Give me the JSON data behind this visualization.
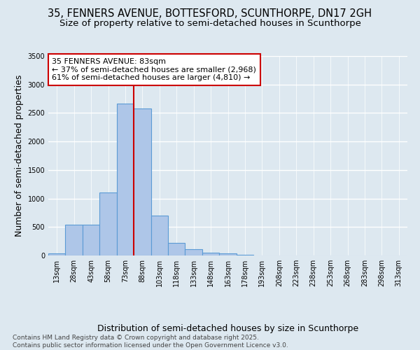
{
  "title_line1": "35, FENNERS AVENUE, BOTTESFORD, SCUNTHORPE, DN17 2GH",
  "title_line2": "Size of property relative to semi-detached houses in Scunthorpe",
  "xlabel": "Distribution of semi-detached houses by size in Scunthorpe",
  "ylabel": "Number of semi-detached properties",
  "bin_labels": [
    "13sqm",
    "28sqm",
    "43sqm",
    "58sqm",
    "73sqm",
    "88sqm",
    "103sqm",
    "118sqm",
    "133sqm",
    "148sqm",
    "163sqm",
    "178sqm",
    "193sqm",
    "208sqm",
    "223sqm",
    "238sqm",
    "253sqm",
    "268sqm",
    "283sqm",
    "298sqm",
    "313sqm"
  ],
  "bar_values": [
    35,
    545,
    545,
    1100,
    2670,
    2580,
    700,
    215,
    110,
    55,
    35,
    10,
    0,
    0,
    0,
    0,
    0,
    0,
    0,
    0,
    0
  ],
  "bar_color": "#aec6e8",
  "bar_edge_color": "#5b9bd5",
  "vline_x": 4.5,
  "vline_color": "#cc0000",
  "annotation_text": "35 FENNERS AVENUE: 83sqm\n← 37% of semi-detached houses are smaller (2,968)\n61% of semi-detached houses are larger (4,810) →",
  "annotation_box_color": "#ffffff",
  "annotation_box_edge": "#cc0000",
  "ylim": [
    0,
    3500
  ],
  "yticks": [
    0,
    500,
    1000,
    1500,
    2000,
    2500,
    3000,
    3500
  ],
  "background_color": "#dde8f0",
  "plot_bg_color": "#dde8f0",
  "grid_color": "#ffffff",
  "footer_line1": "Contains HM Land Registry data © Crown copyright and database right 2025.",
  "footer_line2": "Contains public sector information licensed under the Open Government Licence v3.0.",
  "title_fontsize": 10.5,
  "subtitle_fontsize": 9.5,
  "axis_label_fontsize": 9,
  "tick_fontsize": 7,
  "annotation_fontsize": 8,
  "footer_fontsize": 6.5
}
